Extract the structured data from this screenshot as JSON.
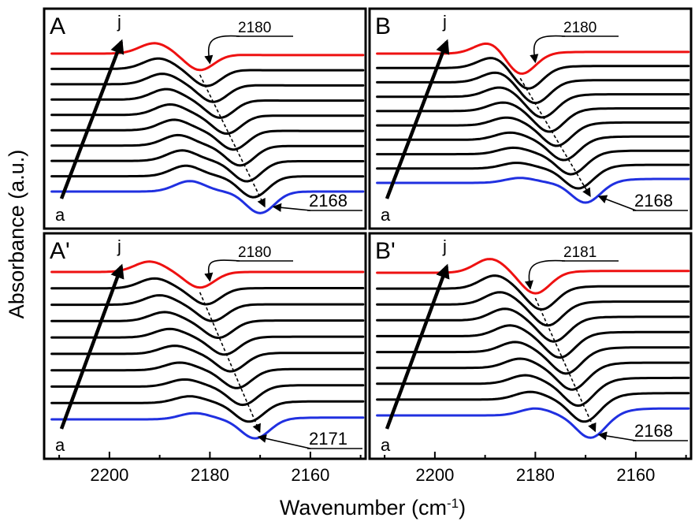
{
  "figure": {
    "ylabel": "Absorbance (a.u.)",
    "xlabel_text": "Wavenumber (cm",
    "xlabel_exp": "-1",
    "xlabel_close": ")",
    "x_ticks": [
      "2200",
      "2180",
      "2160"
    ]
  },
  "colors": {
    "first": "#2030e0",
    "middle": "#000000",
    "last": "#ee1111"
  },
  "chart_data": [
    {
      "type": "line",
      "panel": "A",
      "start_label": "a",
      "end_label": "j",
      "xlabel": "Wavenumber (cm-1)",
      "ylabel": "Absorbance (a.u.)",
      "xlim": [
        2213,
        2149
      ],
      "x_reversed": true,
      "series_count": 10,
      "peaks": [
        {
          "label": "2180",
          "position": 2180,
          "series": "j"
        },
        {
          "label": "2168",
          "position": 2168,
          "series": "a"
        }
      ],
      "series_shape": {
        "first_min_x": 2170,
        "last_min_x": 2182,
        "first_depth": 0.72,
        "last_depth": 0.55,
        "first_max_x": 2184,
        "last_max_x": 2191,
        "first_bump": 0.35,
        "last_bump": 0.35,
        "first_tail": 0,
        "last_tail": -0.05
      }
    },
    {
      "type": "line",
      "panel": "B",
      "start_label": "a",
      "end_label": "j",
      "xlabel": "Wavenumber (cm-1)",
      "ylabel": "Absorbance (a.u.)",
      "xlim": [
        2213,
        2149
      ],
      "x_reversed": true,
      "series_count": 10,
      "peaks": [
        {
          "label": "2180",
          "position": 2180,
          "series": "j"
        },
        {
          "label": "2168",
          "position": 2168,
          "series": "a"
        }
      ],
      "series_shape": {
        "first_min_x": 2170,
        "last_min_x": 2183,
        "first_depth": 0.6,
        "last_depth": 0.65,
        "first_max_x": 2183,
        "last_max_x": 2189,
        "first_bump": 0.15,
        "last_bump": 0.35,
        "first_tail": 0.12,
        "last_tail": 0.05
      }
    },
    {
      "type": "line",
      "panel": "A'",
      "start_label": "a",
      "end_label": "j",
      "xlabel": "Wavenumber (cm-1)",
      "ylabel": "Absorbance (a.u.)",
      "xlim": [
        2213,
        2149
      ],
      "x_reversed": true,
      "series_count": 10,
      "peaks": [
        {
          "label": "2180",
          "position": 2180,
          "series": "j"
        },
        {
          "label": "2171",
          "position": 2171,
          "series": "a"
        }
      ],
      "series_shape": {
        "first_min_x": 2171,
        "last_min_x": 2182,
        "first_depth": 0.55,
        "last_depth": 0.45,
        "first_max_x": 2183,
        "last_max_x": 2192,
        "first_bump": 0.18,
        "last_bump": 0.3,
        "first_tail": 0.05,
        "last_tail": 0
      }
    },
    {
      "type": "line",
      "panel": "B'",
      "start_label": "a",
      "end_label": "j",
      "xlabel": "Wavenumber (cm-1)",
      "ylabel": "Absorbance (a.u.)",
      "xlim": [
        2213,
        2149
      ],
      "x_reversed": true,
      "series_count": 10,
      "peaks": [
        {
          "label": "2181",
          "position": 2181,
          "series": "j"
        },
        {
          "label": "2168",
          "position": 2168,
          "series": "a"
        }
      ],
      "series_shape": {
        "first_min_x": 2169,
        "last_min_x": 2180,
        "first_depth": 0.65,
        "last_depth": 0.6,
        "first_max_x": 2180,
        "last_max_x": 2189,
        "first_bump": 0.2,
        "last_bump": 0.4,
        "first_tail": 0.2,
        "last_tail": 0.05
      }
    }
  ]
}
